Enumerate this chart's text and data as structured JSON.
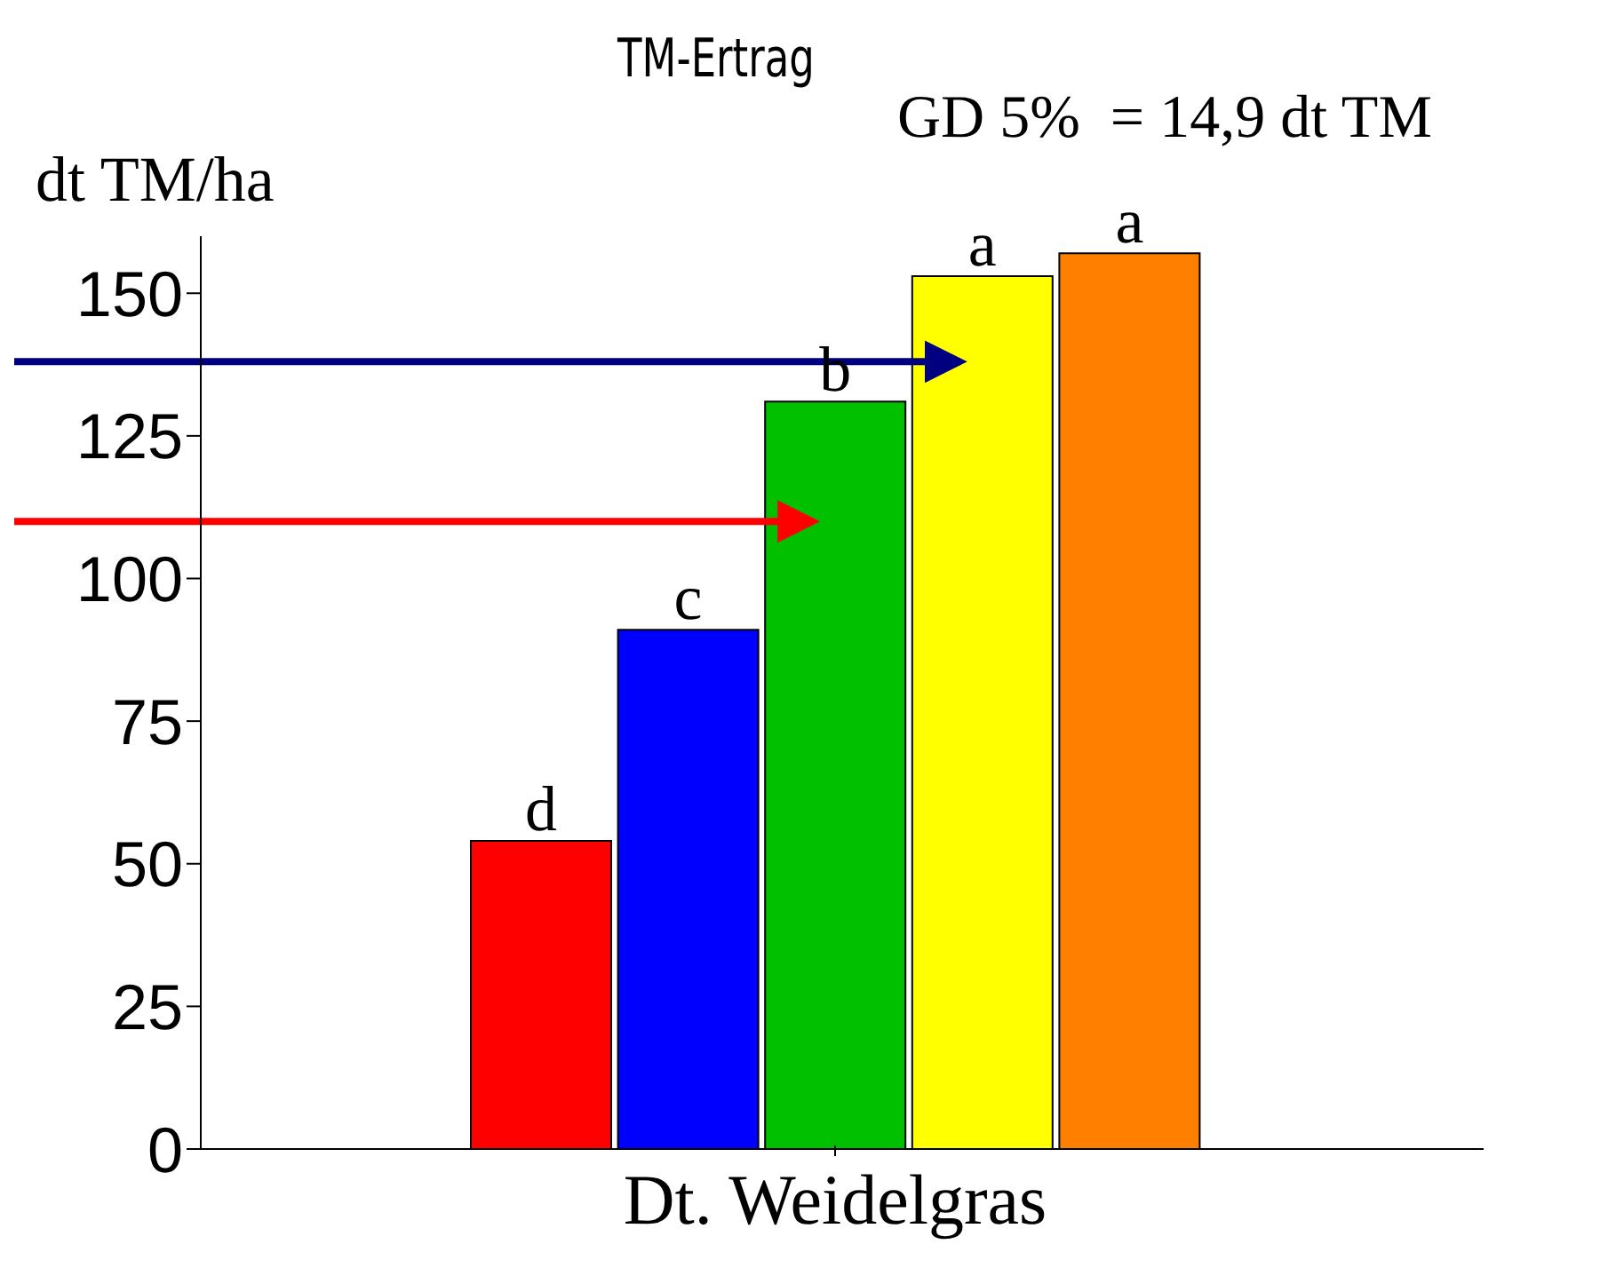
{
  "chart_data": {
    "type": "bar",
    "title": "TM-Ertrag",
    "ylabel": "dt TM/ha",
    "annotations": [
      "GD 5%  = 14,9 dt TM"
    ],
    "categories": [
      null,
      null,
      "Dt. Weidelgras",
      null,
      null
    ],
    "values": [
      54,
      91,
      131,
      153,
      157
    ],
    "colors": [
      "#ff0000",
      "#0000ff",
      "#00c000",
      "#ffff00",
      "#ff8000"
    ],
    "value_labels": [
      "d",
      "c",
      "b",
      "a",
      "a"
    ],
    "ylim": [
      0,
      160
    ],
    "yticks": [
      0,
      25,
      50,
      75,
      100,
      125,
      150
    ],
    "grid": false,
    "legend": false,
    "ref_lines": [
      {
        "axis": "y",
        "value": 138,
        "color": "#000080"
      },
      {
        "axis": "y",
        "value": 110,
        "color": "#ff0000"
      }
    ]
  }
}
